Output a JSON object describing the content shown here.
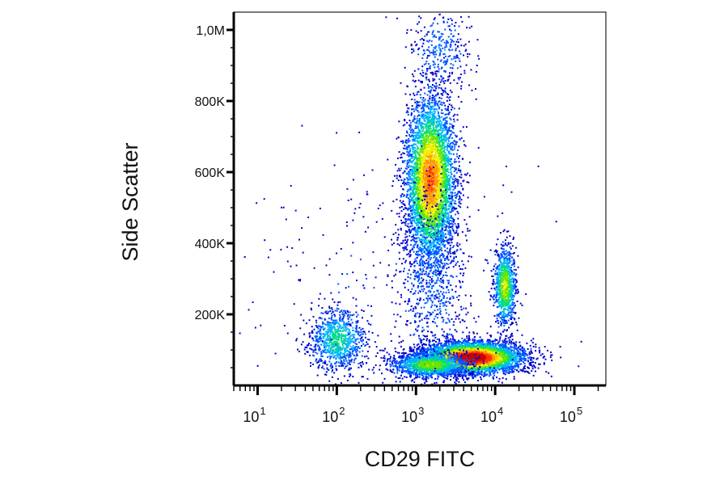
{
  "chart_data": {
    "type": "scatter",
    "subtype": "flow-cytometry-density-dot-plot",
    "xlabel": "CD29 FITC",
    "ylabel": "Side Scatter",
    "x_scale": "log",
    "xlim": [
      5,
      250000
    ],
    "ylim": [
      0,
      1050000
    ],
    "x_ticks": [
      {
        "value": 10,
        "base": "10",
        "exp": "1"
      },
      {
        "value": 100,
        "base": "10",
        "exp": "2"
      },
      {
        "value": 1000,
        "base": "10",
        "exp": "3"
      },
      {
        "value": 10000,
        "base": "10",
        "exp": "4"
      },
      {
        "value": 100000,
        "base": "10",
        "exp": "5"
      }
    ],
    "y_ticks": [
      {
        "value": 200000,
        "label": "200K"
      },
      {
        "value": 400000,
        "label": "400K"
      },
      {
        "value": 600000,
        "label": "600K"
      },
      {
        "value": 800000,
        "label": "800K"
      },
      {
        "value": 1000000,
        "label": "1,0M"
      }
    ],
    "grid": false,
    "legend": "none",
    "colormap": [
      "#0000cc",
      "#0055ff",
      "#00b4ff",
      "#00dd88",
      "#66e600",
      "#f2ee00",
      "#ff9900",
      "#ff3300",
      "#cc0000"
    ],
    "populations": [
      {
        "x_center": 100,
        "y_center": 130000,
        "x_spread_log": 0.18,
        "y_spread": 45000,
        "events": 900,
        "peak_density": 0.35
      },
      {
        "x_center": 1500,
        "y_center": 580000,
        "x_spread_log": 0.16,
        "y_spread": 120000,
        "events": 4500,
        "peak_density": 0.75
      },
      {
        "x_center": 1600,
        "y_center": 300000,
        "x_spread_log": 0.22,
        "y_spread": 130000,
        "events": 700,
        "peak_density": 0.15
      },
      {
        "x_center": 13000,
        "y_center": 280000,
        "x_spread_log": 0.07,
        "y_spread": 55000,
        "events": 900,
        "peak_density": 0.55
      },
      {
        "x_center": 5000,
        "y_center": 80000,
        "x_spread_log": 0.32,
        "y_spread": 22000,
        "events": 4800,
        "peak_density": 1.0
      },
      {
        "x_center": 1500,
        "y_center": 60000,
        "x_spread_log": 0.25,
        "y_spread": 18000,
        "events": 1200,
        "peak_density": 0.5
      },
      {
        "x_center": 2000,
        "y_center": 950000,
        "x_spread_log": 0.2,
        "y_spread": 60000,
        "events": 300,
        "peak_density": 0.15
      },
      {
        "x_center": 300,
        "y_center": 250000,
        "x_spread_log": 0.9,
        "y_spread": 200000,
        "events": 250,
        "peak_density": 0.05
      }
    ]
  }
}
